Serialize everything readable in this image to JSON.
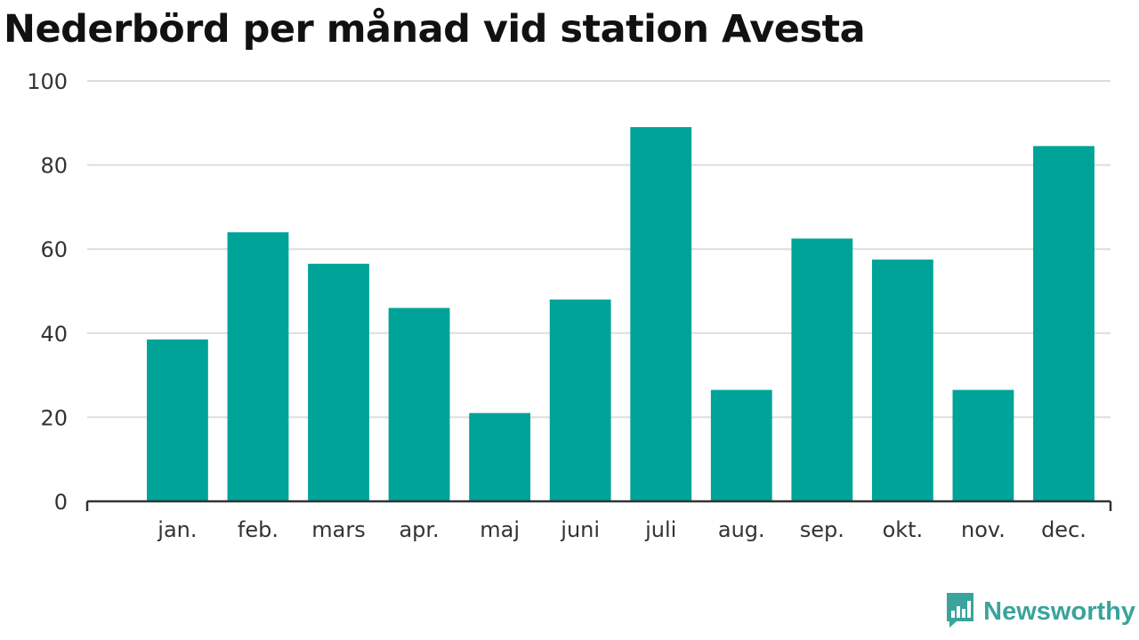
{
  "title": "Nederbörd per månad vid station Avesta",
  "brand": {
    "name": "Newsworthy",
    "icon": "newsworthy-logo-icon",
    "color": "#3aa39b"
  },
  "colors": {
    "bar": "#00a398",
    "grid": "#dddddd",
    "axis": "#333333"
  },
  "chart_data": {
    "type": "bar",
    "title": "Nederbörd per månad vid station Avesta",
    "xlabel": "",
    "ylabel": "",
    "categories": [
      "jan.",
      "feb.",
      "mars",
      "apr.",
      "maj",
      "juni",
      "juli",
      "aug.",
      "sep.",
      "okt.",
      "nov.",
      "dec."
    ],
    "values": [
      38.5,
      64,
      56.5,
      46,
      21,
      48,
      89,
      26.5,
      62.5,
      57.5,
      26.5,
      84.5
    ],
    "ylim": [
      0,
      100
    ],
    "yticks": [
      0,
      20,
      40,
      60,
      80,
      100
    ],
    "ytick_labels": [
      "0",
      "20",
      "40",
      "60",
      "80",
      "100"
    ],
    "grid": true,
    "legend": "none"
  }
}
